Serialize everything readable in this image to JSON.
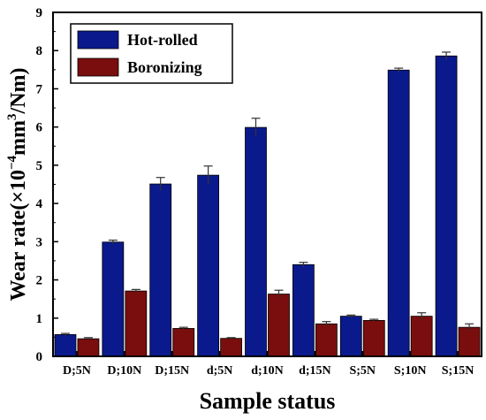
{
  "chart_data": {
    "type": "bar",
    "title": "",
    "xlabel": "Sample status",
    "ylabel_main": "Wear rate(×10",
    "ylabel_exp": "−4",
    "ylabel_unit": "mm",
    "ylabel_unit_exp": "3",
    "ylabel_tail": "/Nm)",
    "categories": [
      "D;5N",
      "D;10N",
      "D;15N",
      "d;5N",
      "d;10N",
      "d;15N",
      "S;5N",
      "S;10N",
      "S;15N"
    ],
    "series": [
      {
        "name": "Hot-rolled",
        "color": "#0a1a8c",
        "values": [
          0.57,
          2.99,
          4.51,
          4.74,
          5.99,
          2.4,
          1.05,
          7.49,
          7.86
        ],
        "errors": [
          0.03,
          0.05,
          0.17,
          0.24,
          0.24,
          0.06,
          0.03,
          0.05,
          0.1
        ]
      },
      {
        "name": "Boronizing",
        "color": "#7a0d0d",
        "values": [
          0.46,
          1.71,
          0.73,
          0.47,
          1.63,
          0.85,
          0.94,
          1.05,
          0.76
        ],
        "errors": [
          0.03,
          0.04,
          0.03,
          0.02,
          0.1,
          0.06,
          0.03,
          0.09,
          0.09
        ]
      }
    ],
    "ylim": [
      0,
      9
    ],
    "yticks": [
      "0",
      "1",
      "2",
      "3",
      "4",
      "5",
      "6",
      "7",
      "8",
      "9"
    ],
    "legend_position": "top-left",
    "grid": false
  }
}
